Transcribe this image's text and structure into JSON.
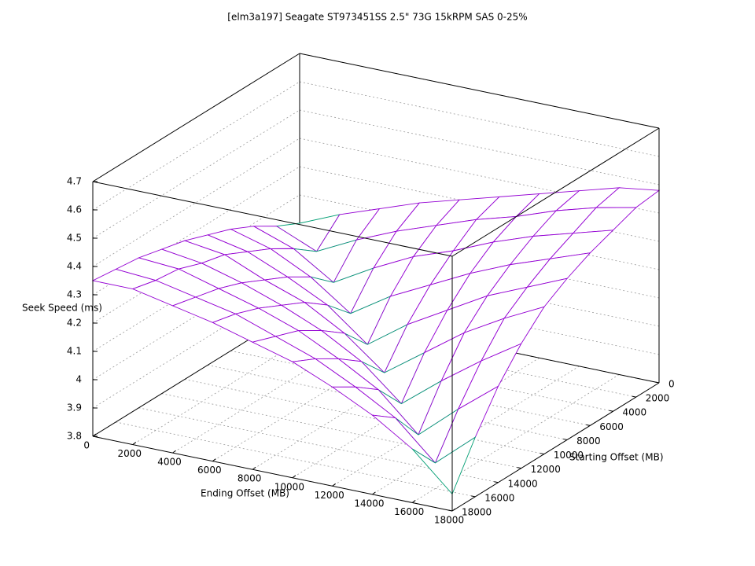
{
  "chart_data": {
    "type": "surface",
    "title": "[elm3a197] Seagate ST973451SS 2.5\" 73G 15kRPM SAS 0-25%",
    "x_label": "Ending Offset (MB)",
    "y_label": "Starting Offset (MB)",
    "z_label": "Seek Speed (ms)",
    "color": "#9400d3",
    "underside_color": "#009e73",
    "x": [
      0,
      2000,
      4000,
      6000,
      8000,
      10000,
      12000,
      14000,
      16000,
      18000
    ],
    "y": [
      0,
      2000,
      4000,
      6000,
      8000,
      10000,
      12000,
      14000,
      16000,
      18000
    ],
    "z": [
      [
        4.1,
        4.16,
        4.21,
        4.26,
        4.3,
        4.34,
        4.38,
        4.42,
        4.46,
        4.48
      ],
      [
        4.14,
        4.08,
        4.15,
        4.21,
        4.26,
        4.31,
        4.35,
        4.4,
        4.44,
        4.47
      ],
      [
        4.19,
        4.14,
        4.05,
        4.13,
        4.2,
        4.25,
        4.31,
        4.36,
        4.4,
        4.44
      ],
      [
        4.23,
        4.19,
        4.12,
        4.02,
        4.11,
        4.18,
        4.25,
        4.31,
        4.36,
        4.41
      ],
      [
        4.26,
        4.23,
        4.17,
        4.1,
        3.99,
        4.09,
        4.17,
        4.25,
        4.31,
        4.37
      ],
      [
        4.29,
        4.27,
        4.21,
        4.16,
        4.08,
        3.97,
        4.07,
        4.17,
        4.25,
        4.32
      ],
      [
        4.31,
        4.29,
        4.25,
        4.2,
        4.14,
        4.06,
        3.94,
        4.05,
        4.15,
        4.24
      ],
      [
        4.33,
        4.32,
        4.28,
        4.24,
        4.19,
        4.12,
        4.04,
        3.91,
        4.03,
        4.14
      ],
      [
        4.34,
        4.33,
        4.3,
        4.27,
        4.22,
        4.17,
        4.1,
        4.02,
        3.89,
        4.01
      ],
      [
        4.35,
        4.35,
        4.32,
        4.29,
        4.25,
        4.21,
        4.15,
        4.08,
        3.99,
        3.86
      ]
    ],
    "xlim": [
      0,
      18000
    ],
    "ylim": [
      0,
      18000
    ],
    "zlim": [
      3.8,
      4.7
    ],
    "xticks": [
      0,
      2000,
      4000,
      6000,
      8000,
      10000,
      12000,
      14000,
      16000,
      18000
    ],
    "yticks": [
      0,
      2000,
      4000,
      6000,
      8000,
      10000,
      12000,
      14000,
      16000,
      18000
    ],
    "zticks": [
      3.8,
      3.9,
      4,
      4.1,
      4.2,
      4.3,
      4.4,
      4.5,
      4.6,
      4.7
    ],
    "grid": true
  }
}
